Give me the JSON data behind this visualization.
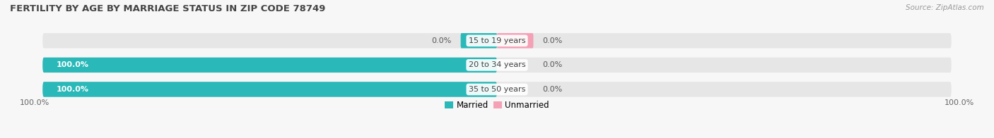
{
  "title": "FERTILITY BY AGE BY MARRIAGE STATUS IN ZIP CODE 78749",
  "source": "Source: ZipAtlas.com",
  "categories": [
    "15 to 19 years",
    "20 to 34 years",
    "35 to 50 years"
  ],
  "married_values": [
    0.0,
    100.0,
    100.0
  ],
  "unmarried_values": [
    0.0,
    0.0,
    0.0
  ],
  "married_color": "#2ab8b8",
  "unmarried_color": "#f4a0b5",
  "bar_bg_color": "#e6e6e6",
  "title_fontsize": 9.5,
  "label_fontsize": 8.0,
  "tick_fontsize": 8.0,
  "legend_fontsize": 8.5,
  "background_color": "#f7f7f7",
  "xleft": -100,
  "xright": 100,
  "bottom_left_label": "100.0%",
  "bottom_right_label": "100.0%"
}
